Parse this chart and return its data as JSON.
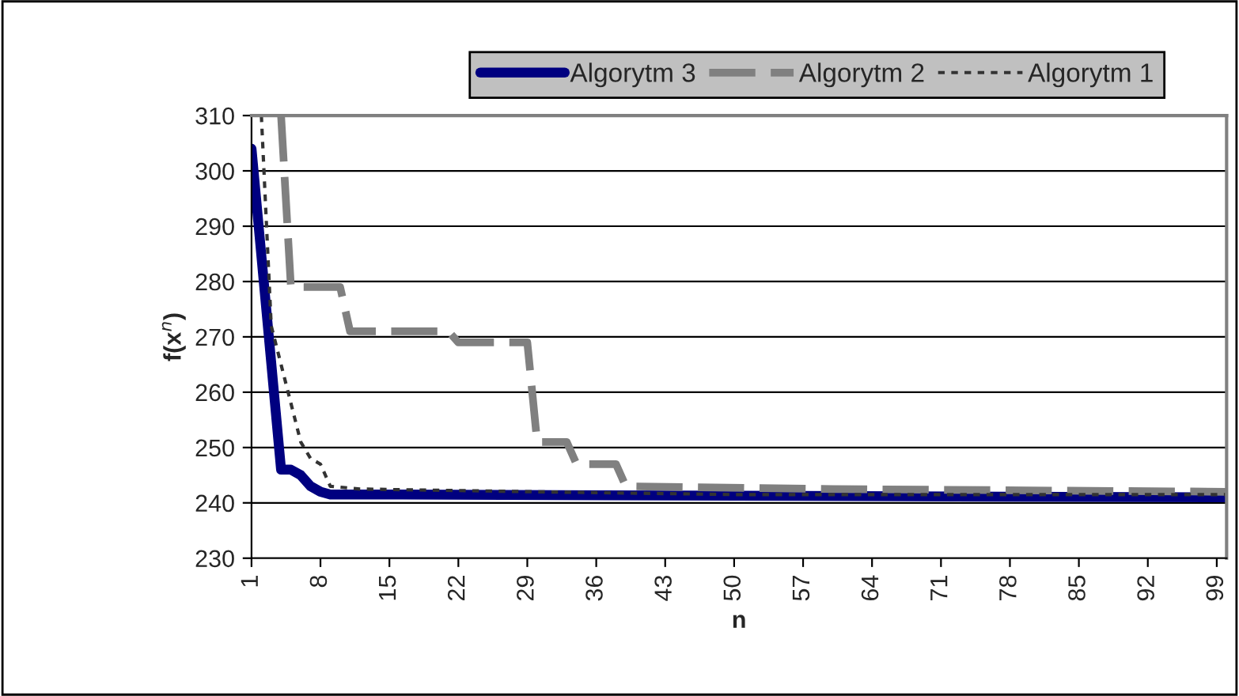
{
  "chart_data": {
    "type": "line",
    "xlabel": "n",
    "ylabel": "f(x$^{n}$)",
    "xlim": [
      1,
      100
    ],
    "xticks": [
      1,
      8,
      15,
      22,
      29,
      36,
      43,
      50,
      57,
      64,
      71,
      78,
      85,
      92,
      99
    ],
    "ylim": [
      230,
      310
    ],
    "yticks": [
      230,
      240,
      250,
      260,
      270,
      280,
      290,
      300,
      310
    ],
    "grid": "y",
    "legend": "top",
    "marker": "none",
    "series": [
      {
        "name": "Algorytm 3",
        "color": "#000080",
        "line_style": "solid",
        "x": [
          1,
          4,
          5,
          6,
          7,
          8,
          9,
          15,
          100
        ],
        "values": [
          304,
          246,
          246,
          245,
          243,
          242,
          241.5,
          241.5,
          241
        ]
      },
      {
        "name": "Algorytm 2",
        "color": "#808080",
        "line_style": "dashed",
        "x": [
          4,
          5,
          10,
          11,
          21,
          22,
          29,
          30,
          33,
          34,
          38,
          39,
          60,
          100
        ],
        "values": [
          310,
          279,
          279,
          271,
          271,
          269,
          269,
          251,
          251,
          247,
          247,
          243,
          242.5,
          242
        ]
      },
      {
        "name": "Algorytm 1",
        "color": "#333333",
        "line_style": "dotted",
        "x": [
          2,
          3,
          4,
          5,
          6,
          7,
          8,
          9,
          12,
          30,
          50,
          100
        ],
        "values": [
          310,
          272,
          265,
          258,
          251,
          248,
          247,
          243,
          242.5,
          242,
          241.5,
          241.5
        ]
      }
    ]
  }
}
